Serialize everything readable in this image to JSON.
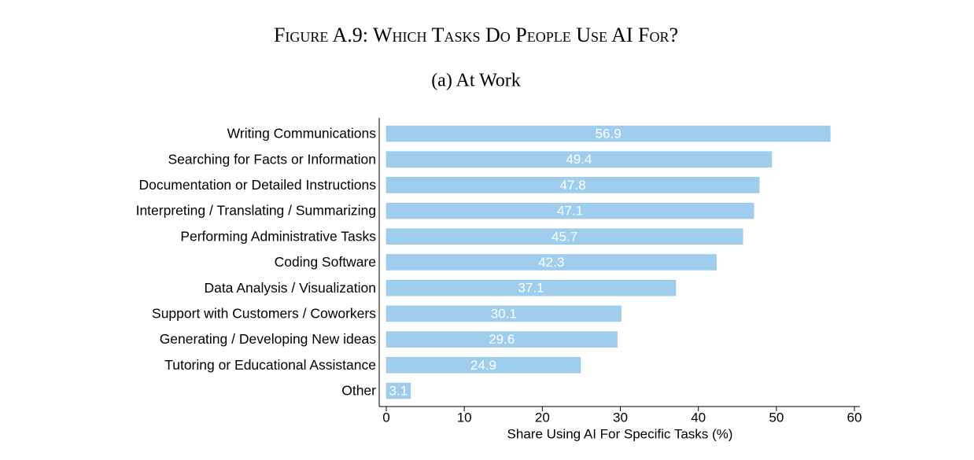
{
  "chart_data": {
    "type": "barh",
    "title": "Figure A.9: Which Tasks Do People Use AI For?",
    "subtitle": "(a) At Work",
    "x_label": "Share Using AI For Specific Tasks (%)",
    "categories": [
      "Writing Communications",
      "Searching for Facts or Information",
      "Documentation or Detailed Instructions",
      "Interpreting / Translating / Summarizing",
      "Performing Administrative Tasks",
      "Coding Software",
      "Data Analysis / Visualization",
      "Support with Customers / Coworkers",
      "Generating / Developing New ideas",
      "Tutoring or Educational Assistance",
      "Other"
    ],
    "values": [
      56.9,
      49.4,
      47.8,
      47.1,
      45.7,
      42.3,
      37.1,
      30.1,
      29.6,
      24.9,
      3.1
    ],
    "color": "#9fcdee",
    "xlim": [
      0,
      60
    ],
    "xticks": [
      0,
      10,
      20,
      30,
      40,
      50,
      60
    ]
  }
}
